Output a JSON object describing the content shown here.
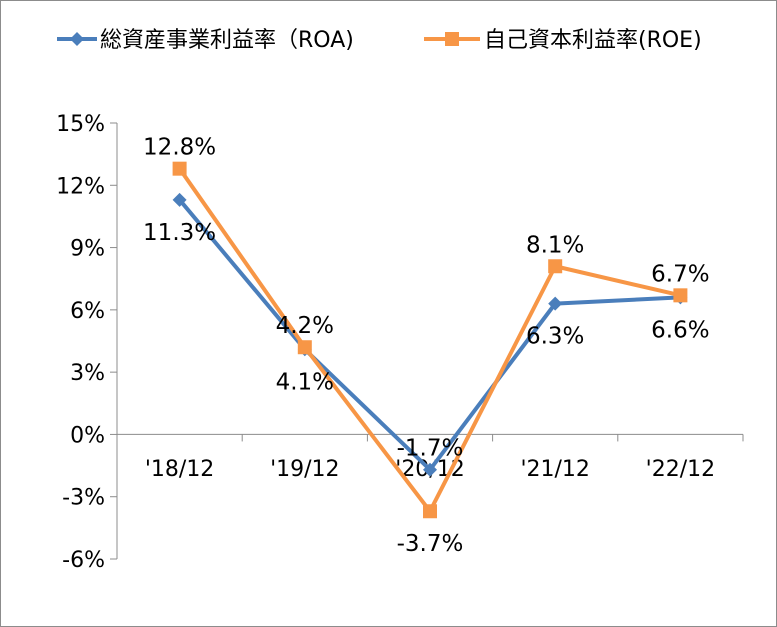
{
  "chart_data": {
    "type": "line",
    "title": "",
    "xlabel": "",
    "ylabel": "",
    "categories": [
      "'18/12",
      "'19/12",
      "'20/12",
      "'21/12",
      "'22/12"
    ],
    "ylim": [
      -6,
      15
    ],
    "yticks": [
      15,
      12,
      9,
      6,
      3,
      0,
      -3,
      -6
    ],
    "ytick_labels": [
      "15%",
      "12%",
      "9%",
      "6%",
      "3%",
      "0%",
      "-3%",
      "-6%"
    ],
    "grid": false,
    "legend_position": "top",
    "series": [
      {
        "name": "総資産事業利益率（ROA)",
        "marker": "diamond",
        "color": "#4a7ebb",
        "values": [
          11.3,
          4.1,
          -1.7,
          6.3,
          6.6
        ],
        "labels": [
          "11.3%",
          "4.1%",
          "-1.7%",
          "6.3%",
          "6.6%"
        ],
        "label_position": [
          "below",
          "below",
          "above",
          "below",
          "below"
        ]
      },
      {
        "name": "自己資本利益率(ROE)",
        "marker": "square",
        "color": "#f79646",
        "values": [
          12.8,
          4.2,
          -3.7,
          8.1,
          6.7
        ],
        "labels": [
          "12.8%",
          "4.2%",
          "-3.7%",
          "8.1%",
          "6.7%"
        ],
        "label_position": [
          "above",
          "above",
          "below",
          "above",
          "above"
        ]
      }
    ]
  }
}
